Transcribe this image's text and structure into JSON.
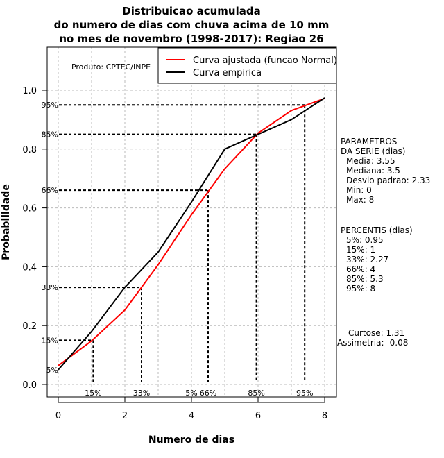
{
  "chart_data": {
    "type": "line",
    "title": [
      "Distribuicao acumulada",
      "do numero de dias com chuva acima de 10 mm",
      "no mes de novembro (1998-2017): Regiao 26"
    ],
    "xlabel": "Numero de dias",
    "ylabel": "Probabilidade",
    "xlim": [
      0,
      8
    ],
    "ylim": [
      0,
      1
    ],
    "xticks": [
      0,
      2,
      4,
      6,
      8
    ],
    "yticks": [
      "0.0",
      "0.2",
      "0.4",
      "0.6",
      "0.8",
      "1.0"
    ],
    "grid": true,
    "product": "Produto: CPTEC/INPE",
    "legend": {
      "placement": "top-right",
      "entries": [
        {
          "label": "Curva ajustada (funcao Normal)",
          "color": "#ff0000"
        },
        {
          "label": "Curva empirica",
          "color": "#000000"
        }
      ]
    },
    "series": [
      {
        "name": "Curva ajustada (funcao Normal)",
        "color": "#ff0000",
        "x": [
          0,
          1,
          2,
          3,
          4,
          5,
          6,
          7,
          8
        ],
        "y": [
          0.064,
          0.148,
          0.253,
          0.407,
          0.577,
          0.733,
          0.854,
          0.931,
          0.972
        ]
      },
      {
        "name": "Curva empirica",
        "color": "#000000",
        "x": [
          0,
          1,
          2,
          3,
          4,
          5,
          6,
          7,
          8
        ],
        "y": [
          0.05,
          0.18,
          0.33,
          0.45,
          0.62,
          0.8,
          0.85,
          0.9,
          0.974
        ]
      }
    ],
    "percentiles": [
      {
        "label": "5%",
        "p": 0.05,
        "x": 4.0,
        "lines": false
      },
      {
        "label": "15%",
        "p": 0.15,
        "x": 1.05,
        "lines": true
      },
      {
        "label": "33%",
        "p": 0.33,
        "x": 2.5,
        "lines": true
      },
      {
        "label": "66%",
        "p": 0.66,
        "x": 4.5,
        "lines": true
      },
      {
        "label": "85%",
        "p": 0.85,
        "x": 5.95,
        "lines": true
      },
      {
        "label": "95%",
        "p": 0.95,
        "x": 7.4,
        "lines": true
      }
    ]
  },
  "side": {
    "params_title": [
      "PARAMETROS",
      "DA SERIE (dias)"
    ],
    "params": [
      "Media: 3.55",
      "Mediana: 3.5",
      "Desvio padrao: 2.33",
      "Min: 0",
      "Max: 8"
    ],
    "percentis_title": "PERCENTIS (dias)",
    "percentis": [
      "5%: 0.95",
      "15%: 1",
      "33%: 2.27",
      "66%: 4",
      "85%: 5.3",
      "95%: 8"
    ],
    "curtose": "Curtose: 1.31",
    "assimetria": "Assimetria: -0.08"
  }
}
